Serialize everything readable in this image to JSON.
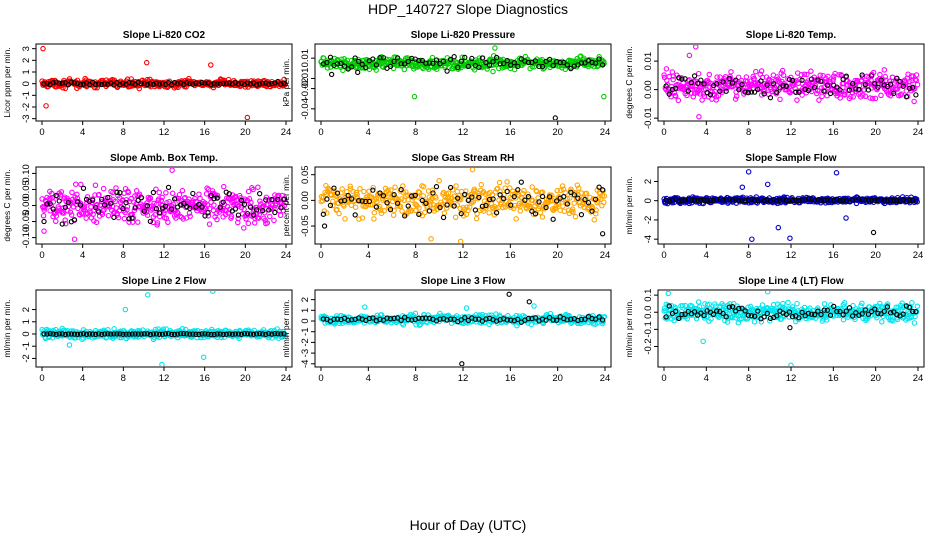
{
  "title": "HDP_140727  Slope Diagnostics",
  "xlabel": "Hour of Day (UTC)",
  "chart_data": [
    {
      "type": "scatter",
      "title": "Slope Li-820 CO2",
      "ylabel": "Licor ppm per min.",
      "color": "#ff0000",
      "xlim": [
        0,
        24
      ],
      "ylim": [
        -3.2,
        3.4
      ],
      "yticks": [
        -3,
        -2,
        -1,
        0,
        1,
        2,
        3
      ],
      "xticks": [
        0,
        4,
        8,
        12,
        16,
        20,
        24
      ],
      "center": 0,
      "spread": 0.45,
      "sigma_scale": 0.5,
      "black_spread": 0.1,
      "outliers": [
        [
          0.1,
          3.0
        ],
        [
          0.4,
          -1.9
        ],
        [
          10.3,
          1.8
        ],
        [
          20.2,
          -2.9
        ],
        [
          16.6,
          1.6
        ]
      ],
      "black_outliers": []
    },
    {
      "type": "scatter",
      "title": "Slope Li-820 Pressure",
      "ylabel": "kPa per min.",
      "color": "#00cc00",
      "xlim": [
        0,
        24
      ],
      "ylim": [
        -0.052,
        0.024
      ],
      "yticks": [
        -0.04,
        -0.02,
        -0.01,
        0.01
      ],
      "xticks": [
        0,
        4,
        8,
        12,
        16,
        20,
        24
      ],
      "center": 0.005,
      "spread": 0.007,
      "sigma_scale": 0.6,
      "black_spread": 0.004,
      "outliers": [
        [
          7.9,
          -0.028
        ],
        [
          14.7,
          0.02
        ],
        [
          23.9,
          -0.028
        ],
        [
          16.0,
          0.0
        ]
      ],
      "black_outliers": [
        [
          19.8,
          -0.049
        ],
        [
          0.9,
          -0.006
        ],
        [
          3.1,
          -0.004
        ]
      ]
    },
    {
      "type": "scatter",
      "title": "Slope Li-820 Temp.",
      "ylabel": "degrees C per min.",
      "color": "#ff00ff",
      "xlim": [
        0,
        24
      ],
      "ylim": [
        -0.011,
        0.016
      ],
      "yticks": [
        -0.01,
        0.0,
        0.01
      ],
      "xticks": [
        0,
        4,
        8,
        12,
        16,
        20,
        24
      ],
      "center": 0.0015,
      "spread": 0.0032,
      "sigma_scale": 1.0,
      "black_spread": 0.0025,
      "outliers": [
        [
          3.0,
          0.015
        ],
        [
          3.3,
          -0.0095
        ],
        [
          2.4,
          0.012
        ]
      ],
      "black_outliers": []
    },
    {
      "type": "scatter",
      "title": "Slope Amb. Box Temp.",
      "ylabel": "degrees C per min.",
      "color": "#ff00ff",
      "xlim": [
        0,
        24
      ],
      "ylim": [
        -0.12,
        0.12
      ],
      "yticks": [
        -0.1,
        -0.05,
        0.0,
        0.05,
        0.1
      ],
      "xticks": [
        0,
        4,
        8,
        12,
        16,
        20,
        24
      ],
      "center": 0.0,
      "spread": 0.04,
      "sigma_scale": 1.0,
      "black_spread": 0.035,
      "outliers": [
        [
          12.8,
          0.11
        ],
        [
          3.2,
          -0.105
        ],
        [
          0.2,
          -0.08
        ]
      ],
      "black_outliers": []
    },
    {
      "type": "scatter",
      "title": "Slope Gas Stream RH",
      "ylabel": "percent per min.",
      "color": "#ffa500",
      "xlim": [
        0,
        24
      ],
      "ylim": [
        -0.085,
        0.065
      ],
      "yticks": [
        -0.05,
        0.0,
        0.05
      ],
      "xticks": [
        0,
        4,
        8,
        12,
        16,
        20,
        24
      ],
      "center": 0.0,
      "spread": 0.022,
      "sigma_scale": 1.0,
      "black_spread": 0.02,
      "outliers": [
        [
          11.8,
          -0.08
        ],
        [
          12.8,
          0.06
        ],
        [
          9.3,
          -0.075
        ]
      ],
      "black_outliers": [
        [
          0.3,
          -0.05
        ],
        [
          23.8,
          -0.065
        ]
      ]
    },
    {
      "type": "scatter",
      "title": "Slope Sample Flow",
      "ylabel": "ml/min per min.",
      "color": "#0000cc",
      "xlim": [
        0,
        24
      ],
      "ylim": [
        -4.5,
        3.5
      ],
      "yticks": [
        -4,
        -2,
        0,
        2
      ],
      "xticks": [
        0,
        4,
        8,
        12,
        16,
        20,
        24
      ],
      "center": 0.05,
      "spread": 0.2,
      "sigma_scale": 1.0,
      "black_spread": 0.08,
      "outliers": [
        [
          8.3,
          -4.0
        ],
        [
          8.0,
          3.0
        ],
        [
          10.8,
          -2.8
        ],
        [
          11.9,
          -3.9
        ],
        [
          16.3,
          2.9
        ],
        [
          17.2,
          -1.8
        ],
        [
          9.8,
          1.7
        ],
        [
          7.4,
          1.4
        ]
      ],
      "black_outliers": [
        [
          19.8,
          -3.3
        ]
      ]
    },
    {
      "type": "scatter",
      "title": "Slope Line 2 Flow",
      "ylabel": "ml/min per min.",
      "color": "#00e5ee",
      "xlim": [
        0,
        24
      ],
      "ylim": [
        -2.7,
        3.6
      ],
      "yticks": [
        -2,
        -1,
        0,
        1,
        2
      ],
      "xticks": [
        0,
        4,
        8,
        12,
        16,
        20,
        24
      ],
      "center": 0.0,
      "spread": 0.25,
      "sigma_scale": 1.0,
      "black_spread": 0.03,
      "outliers": [
        [
          10.4,
          3.2
        ],
        [
          16.8,
          3.5
        ],
        [
          11.8,
          -2.5
        ],
        [
          15.9,
          -1.9
        ],
        [
          8.2,
          2.0
        ],
        [
          2.7,
          -0.9
        ]
      ],
      "black_outliers": []
    },
    {
      "type": "scatter",
      "title": "Slope Line 3 Flow",
      "ylabel": "ml/min per min.",
      "color": "#00e5ee",
      "xlim": [
        0,
        24
      ],
      "ylim": [
        -4.3,
        2.9
      ],
      "yticks": [
        -4,
        -3,
        -2,
        -1,
        0,
        1,
        2
      ],
      "xticks": [
        0,
        4,
        8,
        12,
        16,
        20,
        24
      ],
      "center": 0.15,
      "spread": 0.3,
      "sigma_scale": 1.0,
      "black_spread": 0.15,
      "outliers": [
        [
          3.7,
          1.3
        ],
        [
          12.3,
          1.2
        ],
        [
          18.0,
          1.4
        ]
      ],
      "black_outliers": [
        [
          11.9,
          -4.0
        ],
        [
          15.9,
          2.5
        ],
        [
          17.6,
          1.8
        ]
      ]
    },
    {
      "type": "scatter",
      "title": "Slope Line 4 (LT) Flow",
      "ylabel": "ml/min per min.",
      "color": "#00e5ee",
      "xlim": [
        0,
        24
      ],
      "ylim": [
        -0.32,
        0.13
      ],
      "yticks": [
        -0.2,
        -0.1,
        0.0,
        0.1
      ],
      "xticks": [
        0,
        4,
        8,
        12,
        16,
        20,
        24
      ],
      "center": 0.0,
      "spread": 0.035,
      "sigma_scale": 1.0,
      "black_spread": 0.025,
      "outliers": [
        [
          3.7,
          -0.17
        ],
        [
          12.0,
          -0.31
        ],
        [
          9.8,
          0.12
        ],
        [
          0.4,
          0.11
        ]
      ],
      "black_outliers": [
        [
          11.9,
          -0.09
        ]
      ]
    }
  ]
}
